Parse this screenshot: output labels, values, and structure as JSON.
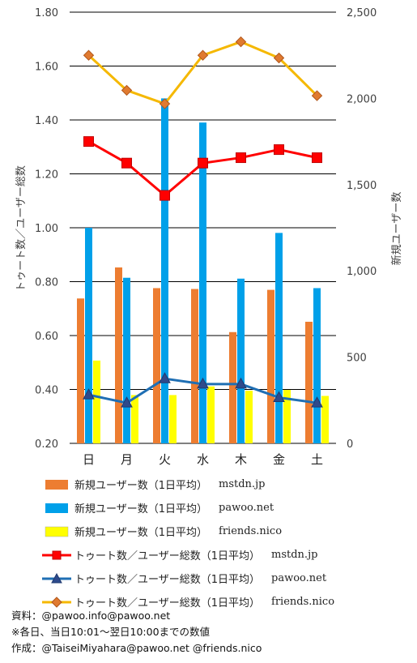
{
  "chart_data": {
    "type": "bar+line",
    "categories": [
      "日",
      "月",
      "火",
      "水",
      "木",
      "金",
      "土"
    ],
    "left_axis": {
      "label": "トゥート数／ユーザー総数",
      "range": [
        0.2,
        1.8
      ],
      "ticks": [
        "0.20",
        "0.40",
        "0.60",
        "0.80",
        "1.00",
        "1.20",
        "1.40",
        "1.60",
        "1.80"
      ]
    },
    "right_axis": {
      "label": "新規ユーザー数",
      "range": [
        0,
        2500
      ],
      "ticks": [
        "0",
        "500",
        "1,000",
        "1,500",
        "2,000",
        "2,500"
      ]
    },
    "grid": true,
    "bar_series": [
      {
        "label": "新規ユーザー数（1日平均）",
        "instance": "mstdn.jp",
        "color": "#ED7D31",
        "values": [
          840,
          1020,
          900,
          895,
          645,
          890,
          705
        ]
      },
      {
        "label": "新規ユーザー数（1日平均）",
        "instance": "pawoo.net",
        "color": "#00A0E9",
        "values": [
          1250,
          960,
          2000,
          1860,
          955,
          1220,
          900
        ]
      },
      {
        "label": "新規ユーザー数（1日平均）",
        "instance": "friends.nico",
        "color": "#FFFF00",
        "values": [
          480,
          280,
          280,
          330,
          305,
          310,
          275
        ]
      }
    ],
    "line_series": [
      {
        "label": "トゥート数／ユーザー総数（1日平均）",
        "instance": "mstdn.jp",
        "color": "#FF0000",
        "marker": "square",
        "values": [
          1.32,
          1.24,
          1.12,
          1.24,
          1.26,
          1.29,
          1.26
        ]
      },
      {
        "label": "トゥート数／ユーザー総数（1日平均）",
        "instance": "pawoo.net",
        "color": "#1F6FB4",
        "marker": "triangle",
        "values": [
          0.38,
          0.35,
          0.44,
          0.42,
          0.42,
          0.37,
          0.35
        ]
      },
      {
        "label": "トゥート数／ユーザー総数（1日平均）",
        "instance": "friends.nico",
        "color": "#F5B800",
        "marker": "diamond",
        "values": [
          1.64,
          1.51,
          1.46,
          1.64,
          1.69,
          1.63,
          1.49
        ]
      }
    ]
  },
  "notes": [
    "資料：@pawoo.info@pawoo.net",
    "※各日、当日10:01～翌日10:00までの数値",
    "作成：@TaiseiMiyahara@pawoo.net @friends.nico"
  ]
}
